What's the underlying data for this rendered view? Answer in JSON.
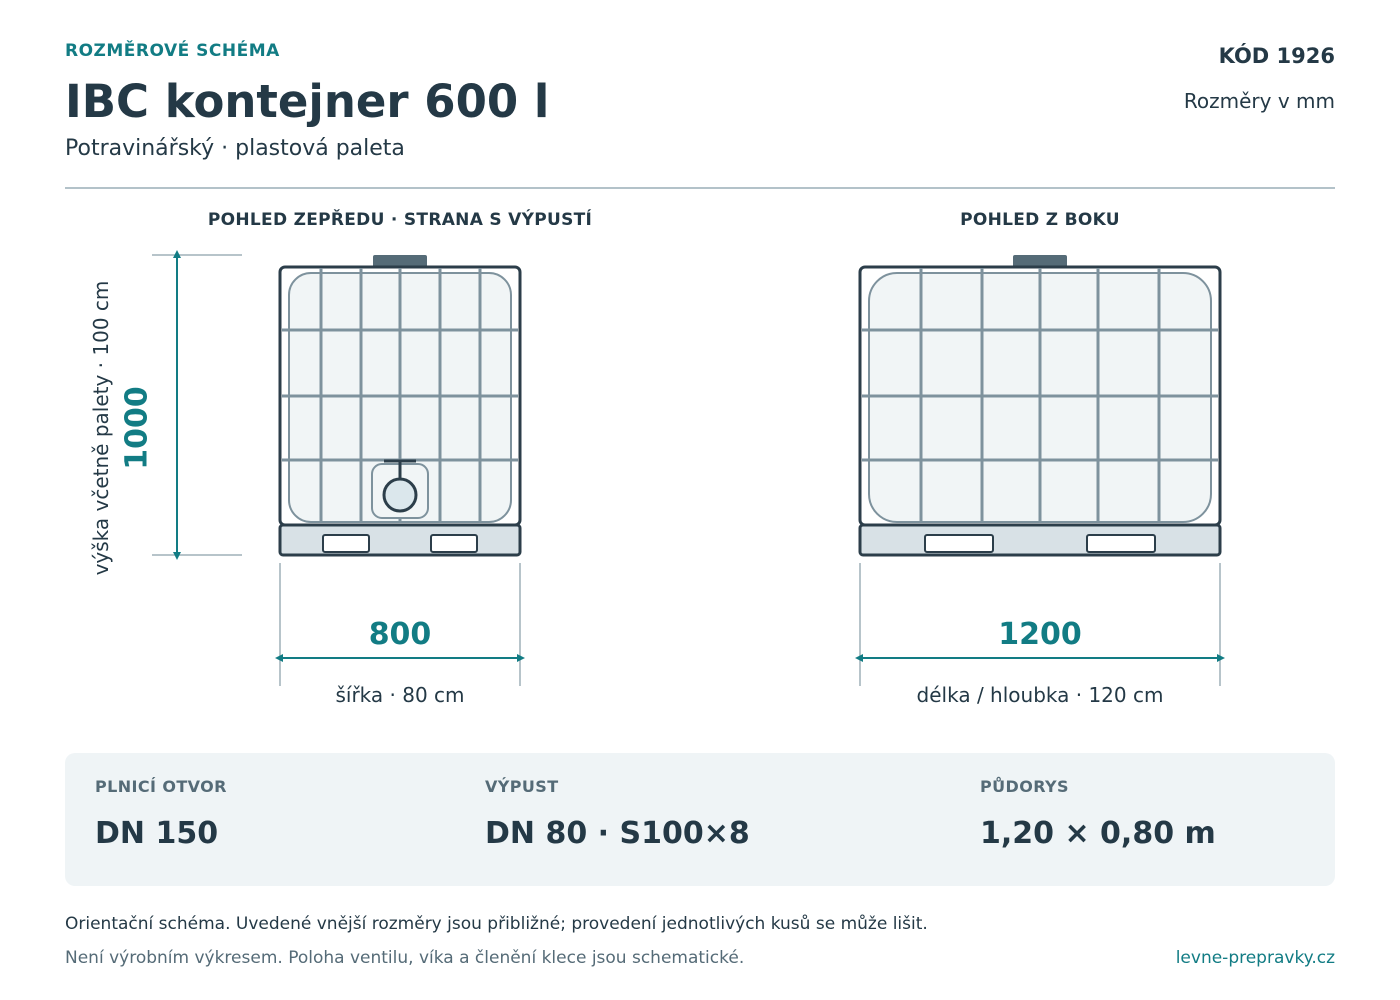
{
  "header": {
    "kicker": "ROZMĚROVÉ SCHÉMA",
    "title": "IBC kontejner 600 l",
    "subtitle": "Potravinářský · plastová paleta",
    "code": "KÓD 1926",
    "units": "Rozměry v mm"
  },
  "views": {
    "front": {
      "title": "POHLED ZEPŘEDU · STRANA S VÝPUSTÍ",
      "width_value": "800",
      "width_caption": "šířka · 80 cm",
      "height_value": "1000",
      "height_caption": "výška včetně palety · 100 cm"
    },
    "side": {
      "title": "POHLED Z BOKU",
      "length_value": "1200",
      "length_caption": "délka / hloubka · 120 cm"
    }
  },
  "specs": [
    {
      "label": "PLNICÍ OTVOR",
      "value": "DN 150"
    },
    {
      "label": "VÝPUST",
      "value": "DN 80 · S100×8"
    },
    {
      "label": "PŮDORYS",
      "value": "1,20 × 0,80 m"
    }
  ],
  "footer": {
    "note1": "Orientační schéma. Uvedené vnější rozměry jsou přibližné; provedení jednotlivých kusů se může lišit.",
    "note2": "Není výrobním výkresem. Poloha ventilu, víka a členění klece jsou schematické.",
    "site": "levne-prepravky.cz"
  },
  "colors": {
    "accent": "#127c84",
    "text": "#243946",
    "muted": "#556b77",
    "cage": "#7e929d",
    "frame": "#2c3e4a",
    "panel": "#eff4f6"
  }
}
